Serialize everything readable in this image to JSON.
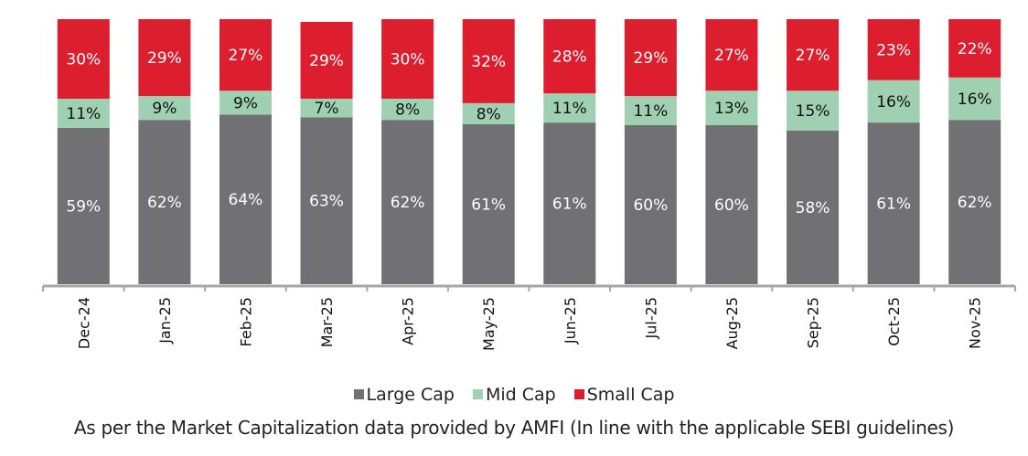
{
  "chart_data": {
    "type": "bar",
    "stacked": true,
    "percent_stacked": true,
    "title": "",
    "xlabel": "",
    "ylabel": "",
    "ylim": [
      0,
      100
    ],
    "grid": false,
    "categories": [
      "Dec-24",
      "Jan-25",
      "Feb-25",
      "Mar-25",
      "Apr-25",
      "May-25",
      "Jun-25",
      "Jul-25",
      "Aug-25",
      "Sep-25",
      "Oct-25",
      "Nov-25"
    ],
    "series": [
      {
        "name": "Large Cap",
        "color": "#717072",
        "label_color": "#ffffff",
        "values": [
          59,
          62,
          64,
          63,
          62,
          61,
          61,
          60,
          60,
          58,
          61,
          62
        ]
      },
      {
        "name": "Mid Cap",
        "color": "#9fd0b1",
        "label_color": "#111111",
        "values": [
          11,
          9,
          9,
          7,
          8,
          8,
          11,
          11,
          13,
          15,
          16,
          16
        ]
      },
      {
        "name": "Small Cap",
        "color": "#dd1e2f",
        "label_color": "#ffffff",
        "values": [
          30,
          29,
          27,
          29,
          30,
          32,
          28,
          29,
          27,
          27,
          23,
          22
        ]
      }
    ],
    "value_suffix": "%",
    "legend": {
      "position": "bottom",
      "entries": [
        "Large Cap",
        "Mid Cap",
        "Small Cap"
      ]
    }
  },
  "footnote": "As per the Market Capitalization data provided by AMFI (In line with the applicable SEBI guidelines)"
}
